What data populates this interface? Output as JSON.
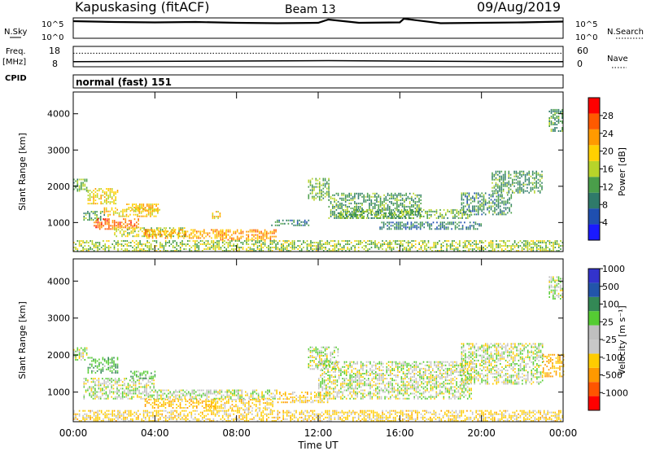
{
  "header": {
    "station": "Kapuskasing (fitACF)",
    "beam": "Beam 13",
    "date": "09/Aug/2019"
  },
  "nsky_panel": {
    "left_label": "N.Sky",
    "left_ticks": [
      "10^5",
      "10^0"
    ],
    "right_ticks": [
      "10^5",
      "10^0"
    ],
    "right_label": "N.Search"
  },
  "freq_panel": {
    "left_label_line1": "Freq.",
    "left_label_line2": "[MHz]",
    "left_ticks": [
      "18",
      "8"
    ],
    "right_ticks": [
      "60",
      "0"
    ],
    "right_label": "Nave"
  },
  "cpid_panel": {
    "label": "CPID",
    "text": "normal (fast) 151"
  },
  "colors": {
    "power": [
      "#1a1aff",
      "#1f4fb0",
      "#2f7a6a",
      "#4a9e4a",
      "#b7d42a",
      "#ffd000",
      "#ff9a00",
      "#ff5a00",
      "#ff0000"
    ],
    "velocity": [
      "#ff0000",
      "#ff5500",
      "#ff9900",
      "#ffcc00",
      "#c8c8c8",
      "#bfbfbf",
      "#55cc33",
      "#338855",
      "#2255aa",
      "#3333cc"
    ]
  },
  "chart_data": [
    {
      "type": "heatmap",
      "panel": "power",
      "ylabel": "Slant Range [km]",
      "yticks": [
        1000,
        2000,
        3000,
        4000
      ],
      "ylim": [
        200,
        4600
      ],
      "xlim": [
        0,
        24
      ],
      "xticks": [
        "00:00",
        "04:00",
        "08:00",
        "12:00",
        "16:00",
        "20:00",
        "00:00"
      ],
      "colorbar": {
        "label": "Power [dB]",
        "ticks": [
          "4",
          "8",
          "12",
          "16",
          "20",
          "24",
          "28"
        ],
        "range": [
          0,
          32
        ]
      },
      "regions": [
        {
          "t0": 0.0,
          "t1": 0.7,
          "r0": 1850,
          "r1": 2200,
          "v": 11
        },
        {
          "t0": 0.7,
          "t1": 2.2,
          "r0": 1500,
          "r1": 1950,
          "v": 17
        },
        {
          "t0": 0.5,
          "t1": 1.5,
          "r0": 1050,
          "r1": 1300,
          "v": 10
        },
        {
          "t0": 1.0,
          "t1": 3.2,
          "r0": 800,
          "r1": 1100,
          "v": 25
        },
        {
          "t0": 1.5,
          "t1": 4.2,
          "r0": 1150,
          "r1": 1400,
          "v": 18
        },
        {
          "t0": 2.6,
          "t1": 4.2,
          "r0": 1300,
          "r1": 1500,
          "v": 19
        },
        {
          "t0": 2.0,
          "t1": 5.5,
          "r0": 600,
          "r1": 850,
          "v": 15
        },
        {
          "t0": 3.5,
          "t1": 7.5,
          "r0": 550,
          "r1": 800,
          "v": 21
        },
        {
          "t0": 6.8,
          "t1": 7.2,
          "r0": 1050,
          "r1": 1300,
          "v": 19
        },
        {
          "t0": 7.2,
          "t1": 10.0,
          "r0": 500,
          "r1": 800,
          "v": 22
        },
        {
          "t0": 9.7,
          "t1": 11.5,
          "r0": 900,
          "r1": 1050,
          "v": 7
        },
        {
          "t0": 11.5,
          "t1": 12.5,
          "r0": 1600,
          "r1": 2200,
          "v": 11
        },
        {
          "t0": 12.5,
          "t1": 17.0,
          "r0": 1100,
          "r1": 1800,
          "v": 9
        },
        {
          "t0": 13.0,
          "t1": 19.5,
          "r0": 1100,
          "r1": 1350,
          "v": 11
        },
        {
          "t0": 15.0,
          "t1": 20.0,
          "r0": 800,
          "r1": 1000,
          "v": 6
        },
        {
          "t0": 19.0,
          "t1": 21.5,
          "r0": 1200,
          "r1": 1800,
          "v": 8
        },
        {
          "t0": 20.5,
          "t1": 23.0,
          "r0": 1800,
          "r1": 2400,
          "v": 9
        },
        {
          "t0": 23.3,
          "t1": 24.0,
          "r0": 3500,
          "r1": 4100,
          "v": 9
        },
        {
          "t0": 0.0,
          "t1": 24.0,
          "r0": 200,
          "r1": 500,
          "v": 13
        }
      ]
    },
    {
      "type": "heatmap",
      "panel": "velocity",
      "ylabel": "Slant Range [km]",
      "yticks": [
        1000,
        2000,
        3000,
        4000
      ],
      "ylim": [
        200,
        4600
      ],
      "xlim": [
        0,
        24
      ],
      "xticks": [
        "00:00",
        "04:00",
        "08:00",
        "12:00",
        "16:00",
        "20:00",
        "00:00"
      ],
      "xlabel": "Time UT",
      "colorbar": {
        "label": "Velocity [m s⁻¹]",
        "ticks": [
          "-1000",
          "-500",
          "-100",
          "-25",
          "25",
          "100",
          "500",
          "1000"
        ],
        "range": [
          -1200,
          1200
        ]
      },
      "regions": [
        {
          "t0": 0.0,
          "t1": 0.7,
          "r0": 1850,
          "r1": 2200,
          "v": 20
        },
        {
          "t0": 0.7,
          "t1": 2.2,
          "r0": 1500,
          "r1": 1950,
          "v": 80
        },
        {
          "t0": 0.5,
          "t1": 4.0,
          "r0": 800,
          "r1": 1350,
          "v": 10
        },
        {
          "t0": 2.8,
          "t1": 4.0,
          "r0": 1350,
          "r1": 1550,
          "v": 70
        },
        {
          "t0": 3.5,
          "t1": 7.0,
          "r0": 550,
          "r1": 800,
          "v": -80
        },
        {
          "t0": 4.0,
          "t1": 10.0,
          "r0": 800,
          "r1": 1050,
          "v": 10
        },
        {
          "t0": 6.5,
          "t1": 9.8,
          "r0": 500,
          "r1": 800,
          "v": -60
        },
        {
          "t0": 10.0,
          "t1": 12.5,
          "r0": 700,
          "r1": 1000,
          "v": -60
        },
        {
          "t0": 11.5,
          "t1": 13.0,
          "r0": 1600,
          "r1": 2200,
          "v": 10
        },
        {
          "t0": 12.0,
          "t1": 19.5,
          "r0": 800,
          "r1": 1800,
          "v": 5
        },
        {
          "t0": 19.0,
          "t1": 23.0,
          "r0": 1200,
          "r1": 2300,
          "v": 5
        },
        {
          "t0": 23.0,
          "t1": 24.0,
          "r0": 1400,
          "r1": 2000,
          "v": -90
        },
        {
          "t0": 23.3,
          "t1": 24.0,
          "r0": 3500,
          "r1": 4100,
          "v": 10
        },
        {
          "t0": 0.0,
          "t1": 24.0,
          "r0": 200,
          "r1": 500,
          "v": -50
        }
      ]
    },
    {
      "type": "line",
      "panel": "nsky",
      "x": [
        0,
        2,
        4,
        6,
        8,
        10,
        12,
        12.5,
        14,
        16,
        16.2,
        18,
        20,
        22,
        24
      ],
      "y": [
        4.2,
        4.0,
        3.9,
        4.0,
        3.8,
        3.7,
        3.8,
        4.6,
        3.8,
        3.9,
        4.8,
        3.7,
        3.8,
        3.9,
        4.1
      ],
      "ylim": [
        0,
        5
      ]
    },
    {
      "type": "line",
      "panel": "freq",
      "series": [
        {
          "name": "Freq.",
          "x": [
            0,
            12.5,
            21.8,
            24
          ],
          "y": [
            10.5,
            11.0,
            10.5,
            10.5
          ],
          "ylim": [
            8,
            18
          ]
        },
        {
          "name": "Nave",
          "x": [
            0,
            24
          ],
          "y": [
            40,
            40
          ],
          "ylim": [
            0,
            60
          ]
        }
      ]
    }
  ]
}
